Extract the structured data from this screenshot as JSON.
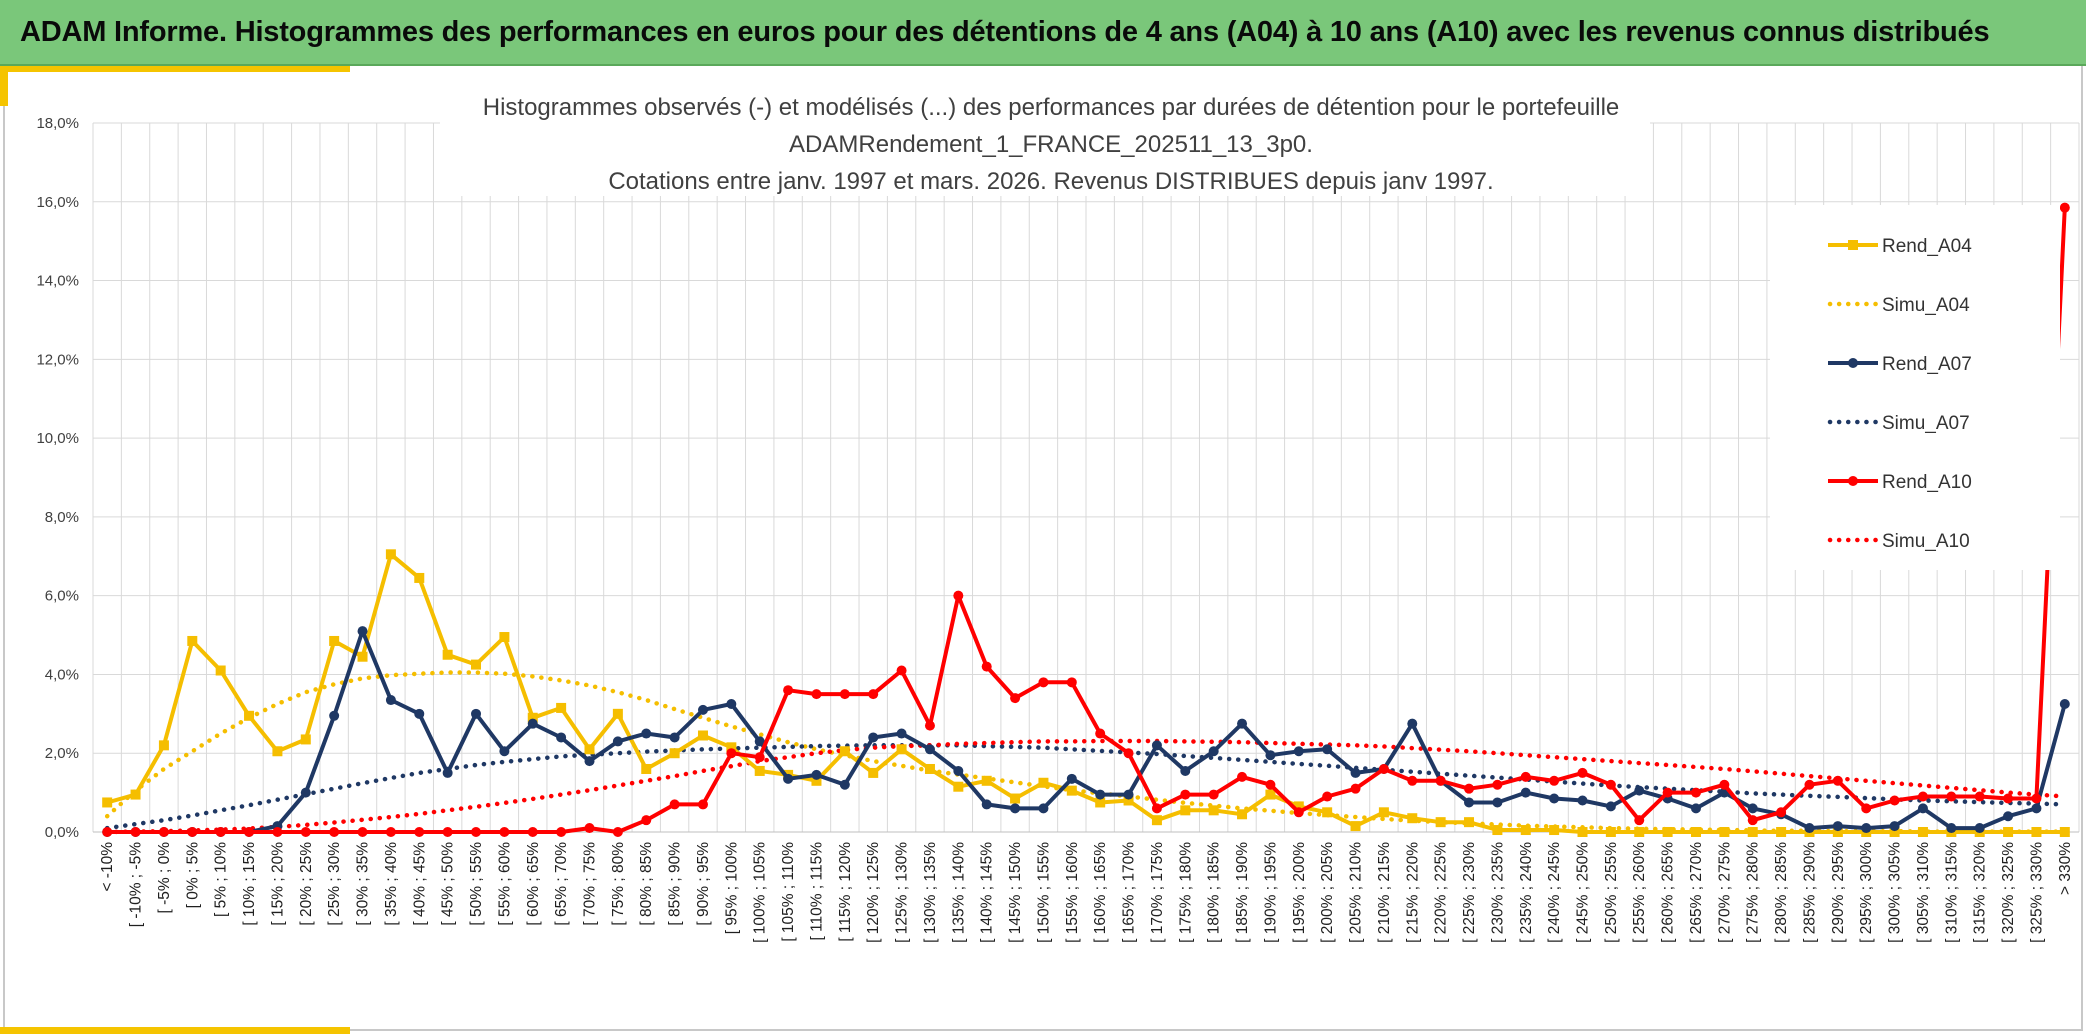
{
  "header": {
    "title": "ADAM Informe. Histogrammes des performances en euros pour des détentions de 4 ans (A04) à 10 ans (A10) avec les revenus connus distribués"
  },
  "chart_data": {
    "type": "line",
    "title_lines": [
      "Histogrammes observés (-) et modélisés (...) des performances par durées de détention pour le portefeuille",
      "ADAMRendement_1_FRANCE_202511_13_3p0.",
      "Cotations entre janv. 1997 et mars. 2026. Revenus DISTRIBUES depuis janv 1997."
    ],
    "xlabel": "",
    "ylabel": "",
    "ylim": [
      0,
      18
    ],
    "y_ticks": [
      "0,0%",
      "2,0%",
      "4,0%",
      "6,0%",
      "8,0%",
      "10,0%",
      "12,0%",
      "14,0%",
      "16,0%",
      "18,0%"
    ],
    "grid": true,
    "legend_position": "right",
    "categories": [
      "< -10%",
      "[ -10% ; -5%",
      "[ -5% ; 0%",
      "[ 0% ; 5%",
      "[ 5% ; 10%",
      "[ 10% ; 15%",
      "[ 15% ; 20%",
      "[ 20% ; 25%",
      "[ 25% ; 30%",
      "[ 30% ; 35%",
      "[ 35% ; 40%",
      "[ 40% ; 45%",
      "[ 45% ; 50%",
      "[ 50% ; 55%",
      "[ 55% ; 60%",
      "[ 60% ; 65%",
      "[ 65% ; 70%",
      "[ 70% ; 75%",
      "[ 75% ; 80%",
      "[ 80% ; 85%",
      "[ 85% ; 90%",
      "[ 90% ; 95%",
      "[ 95% ; 100%",
      "[ 100% ; 105%",
      "[ 105% ; 110%",
      "[ 110% ; 115%",
      "[ 115% ; 120%",
      "[ 120% ; 125%",
      "[ 125% ; 130%",
      "[ 130% ; 135%",
      "[ 135% ; 140%",
      "[ 140% ; 145%",
      "[ 145% ; 150%",
      "[ 150% ; 155%",
      "[ 155% ; 160%",
      "[ 160% ; 165%",
      "[ 165% ; 170%",
      "[ 170% ; 175%",
      "[ 175% ; 180%",
      "[ 180% ; 185%",
      "[ 185% ; 190%",
      "[ 190% ; 195%",
      "[ 195% ; 200%",
      "[ 200% ; 205%",
      "[ 205% ; 210%",
      "[ 210% ; 215%",
      "[ 215% ; 220%",
      "[ 220% ; 225%",
      "[ 225% ; 230%",
      "[ 230% ; 235%",
      "[ 235% ; 240%",
      "[ 240% ; 245%",
      "[ 245% ; 250%",
      "[ 250% ; 255%",
      "[ 255% ; 260%",
      "[ 260% ; 265%",
      "[ 265% ; 270%",
      "[ 270% ; 275%",
      "[ 275% ; 280%",
      "[ 280% ; 285%",
      "[ 285% ; 290%",
      "[ 290% ; 295%",
      "[ 295% ; 300%",
      "[ 300% ; 305%",
      "[ 305% ; 310%",
      "[ 310% ; 315%",
      "[ 315% ; 320%",
      "[ 320% ; 325%",
      "[ 325% ; 330%",
      "> 330%"
    ],
    "series": [
      {
        "name": "Rend_A04",
        "style": "solid",
        "marker": "square",
        "color": "#F5BE00",
        "values": [
          0.75,
          0.95,
          2.2,
          4.85,
          4.1,
          2.95,
          2.05,
          2.35,
          4.85,
          4.45,
          7.05,
          6.45,
          4.5,
          4.25,
          4.95,
          2.9,
          3.15,
          2.1,
          3.0,
          1.6,
          2.0,
          2.45,
          2.15,
          1.55,
          1.45,
          1.3,
          2.05,
          1.5,
          2.1,
          1.6,
          1.15,
          1.3,
          0.85,
          1.25,
          1.05,
          0.75,
          0.8,
          0.3,
          0.55,
          0.55,
          0.45,
          0.95,
          0.65,
          0.5,
          0.15,
          0.5,
          0.35,
          0.25,
          0.25,
          0.05,
          0.05,
          0.05,
          0.0,
          0.0,
          0.0,
          0.0,
          0.0,
          0.0,
          0.0,
          0.0,
          0.0,
          0.0,
          0.0,
          0.0,
          0.0,
          0.0,
          0.0,
          0.0,
          0.0,
          0.0
        ]
      },
      {
        "name": "Simu_A04",
        "style": "dotted",
        "color": "#F5BE00",
        "values": [
          0.4,
          1.05,
          1.6,
          2.05,
          2.5,
          2.9,
          3.25,
          3.55,
          3.75,
          3.9,
          3.98,
          4.02,
          4.05,
          4.05,
          4.02,
          3.95,
          3.85,
          3.72,
          3.55,
          3.35,
          3.12,
          2.9,
          2.68,
          2.48,
          2.28,
          2.1,
          1.95,
          1.8,
          1.68,
          1.56,
          1.46,
          1.36,
          1.26,
          1.16,
          1.06,
          0.98,
          0.9,
          0.82,
          0.74,
          0.67,
          0.6,
          0.54,
          0.48,
          0.43,
          0.38,
          0.33,
          0.29,
          0.25,
          0.22,
          0.19,
          0.16,
          0.14,
          0.12,
          0.1,
          0.08,
          0.07,
          0.06,
          0.05,
          0.04,
          0.03,
          0.03,
          0.02,
          0.02,
          0.02,
          0.01,
          0.01,
          0.01,
          0.01,
          0.01,
          0.01
        ]
      },
      {
        "name": "Rend_A07",
        "style": "solid",
        "marker": "circle",
        "color": "#1F3864",
        "values": [
          0.0,
          0.0,
          0.0,
          0.0,
          0.0,
          0.0,
          0.15,
          1.0,
          2.95,
          5.1,
          3.35,
          3.0,
          1.5,
          3.0,
          2.05,
          2.75,
          2.4,
          1.8,
          2.3,
          2.5,
          2.4,
          3.1,
          3.25,
          2.3,
          1.35,
          1.45,
          1.2,
          2.4,
          2.5,
          2.1,
          1.55,
          0.7,
          0.6,
          0.6,
          1.35,
          0.95,
          0.95,
          2.2,
          1.55,
          2.05,
          2.75,
          1.95,
          2.05,
          2.1,
          1.5,
          1.6,
          2.75,
          1.3,
          0.75,
          0.75,
          1.0,
          0.85,
          0.8,
          0.65,
          1.05,
          0.85,
          0.6,
          1.0,
          0.6,
          0.45,
          0.1,
          0.15,
          0.1,
          0.15,
          0.6,
          0.1,
          0.1,
          0.4,
          0.6,
          3.25
        ]
      },
      {
        "name": "Simu_A07",
        "style": "dotted",
        "color": "#1F3864",
        "values": [
          0.1,
          0.2,
          0.3,
          0.42,
          0.55,
          0.68,
          0.82,
          0.96,
          1.1,
          1.24,
          1.37,
          1.5,
          1.6,
          1.7,
          1.78,
          1.85,
          1.92,
          1.96,
          2.0,
          2.04,
          2.07,
          2.1,
          2.12,
          2.14,
          2.16,
          2.18,
          2.19,
          2.2,
          2.2,
          2.2,
          2.2,
          2.18,
          2.16,
          2.14,
          2.1,
          2.06,
          2.02,
          1.98,
          1.93,
          1.88,
          1.83,
          1.78,
          1.73,
          1.68,
          1.63,
          1.58,
          1.53,
          1.48,
          1.43,
          1.38,
          1.33,
          1.28,
          1.23,
          1.18,
          1.14,
          1.1,
          1.06,
          1.02,
          0.98,
          0.95,
          0.92,
          0.89,
          0.86,
          0.83,
          0.8,
          0.78,
          0.76,
          0.74,
          0.72,
          0.7
        ]
      },
      {
        "name": "Rend_A10",
        "style": "solid",
        "marker": "circle",
        "color": "#FF0000",
        "values": [
          0.0,
          0.0,
          0.0,
          0.0,
          0.0,
          0.0,
          0.0,
          0.0,
          0.0,
          0.0,
          0.0,
          0.0,
          0.0,
          0.0,
          0.0,
          0.0,
          0.0,
          0.1,
          0.0,
          0.3,
          0.7,
          0.7,
          2.0,
          1.9,
          3.6,
          3.5,
          3.5,
          3.5,
          4.1,
          2.7,
          6.0,
          4.2,
          3.4,
          3.8,
          3.8,
          2.5,
          2.0,
          0.6,
          0.95,
          0.95,
          1.4,
          1.2,
          0.5,
          0.9,
          1.1,
          1.6,
          1.3,
          1.3,
          1.1,
          1.2,
          1.4,
          1.3,
          1.5,
          1.2,
          0.3,
          1.0,
          1.0,
          1.2,
          0.3,
          0.5,
          1.2,
          1.3,
          0.6,
          0.8,
          0.9,
          0.9,
          0.9,
          0.85,
          0.85,
          15.85
        ]
      },
      {
        "name": "Simu_A10",
        "style": "dotted",
        "color": "#FF0000",
        "values": [
          0.0,
          0.01,
          0.02,
          0.04,
          0.06,
          0.09,
          0.13,
          0.18,
          0.24,
          0.31,
          0.38,
          0.46,
          0.55,
          0.64,
          0.74,
          0.84,
          0.95,
          1.06,
          1.18,
          1.3,
          1.42,
          1.55,
          1.67,
          1.8,
          1.9,
          2.0,
          2.08,
          2.14,
          2.18,
          2.2,
          2.24,
          2.26,
          2.28,
          2.3,
          2.3,
          2.31,
          2.31,
          2.31,
          2.3,
          2.29,
          2.28,
          2.26,
          2.24,
          2.22,
          2.2,
          2.17,
          2.13,
          2.09,
          2.05,
          2.0,
          1.95,
          1.9,
          1.85,
          1.8,
          1.75,
          1.7,
          1.65,
          1.6,
          1.54,
          1.48,
          1.42,
          1.36,
          1.3,
          1.24,
          1.18,
          1.12,
          1.06,
          1.0,
          0.95,
          0.9
        ]
      }
    ]
  }
}
